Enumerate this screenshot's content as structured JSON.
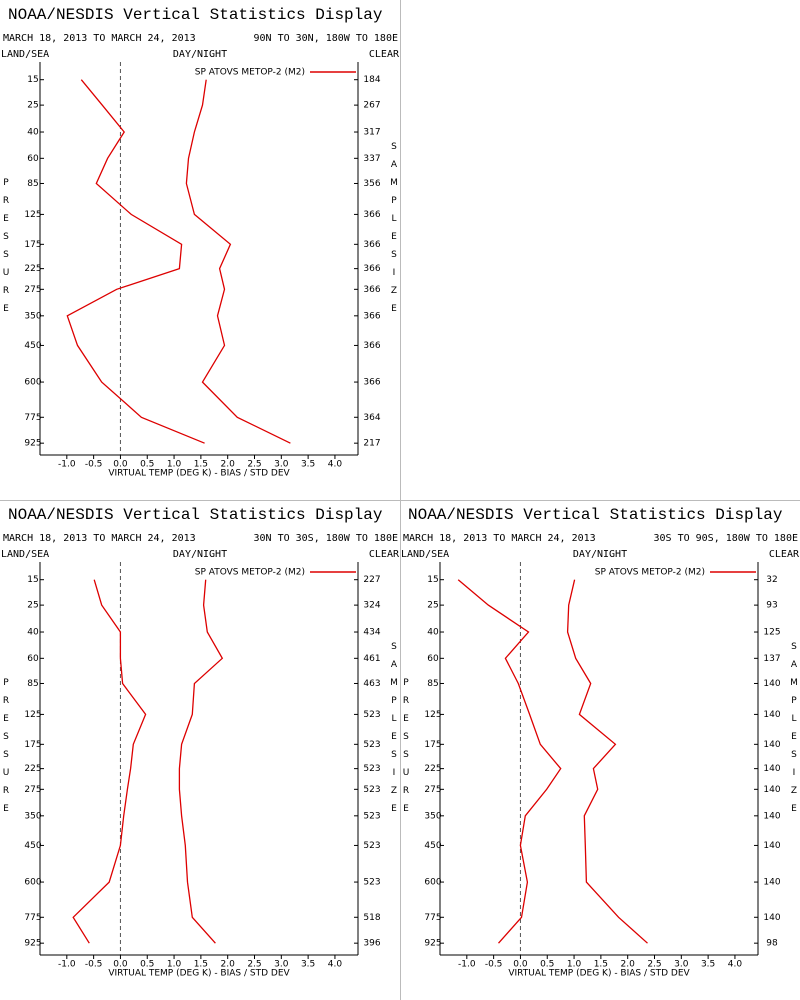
{
  "chart_data": [
    {
      "type": "line",
      "title": "NOAA/NESDIS Vertical Statistics Display",
      "subtitle": "MARCH 18, 2013 TO MARCH 24, 2013",
      "region": "90N TO 30N, 180W TO 180E",
      "left_label": "LAND/SEA",
      "center_label": "DAY/NIGHT",
      "right_label": "CLEAR",
      "y_label": "PRESSURE",
      "y2_label": "SAMPLE SIZE",
      "x_label": "VIRTUAL TEMP (DEG K) - BIAS / STD DEV",
      "y": [
        15,
        25,
        40,
        60,
        85,
        125,
        175,
        225,
        275,
        350,
        450,
        600,
        775,
        925
      ],
      "yticks": [
        15,
        25,
        40,
        60,
        85,
        125,
        175,
        225,
        275,
        350,
        450,
        600,
        775,
        925
      ],
      "ylim": [
        10,
        1000
      ],
      "y_inverted": true,
      "xlim": [
        -1.5,
        4.43
      ],
      "xticks": [
        {
          "value": -1,
          "label": "-1.0"
        },
        -0.5,
        {
          "value": 0,
          "label": "0.0"
        },
        0.5,
        {
          "value": 1,
          "label": "1.0"
        },
        1.5,
        {
          "value": 2,
          "label": "2.0"
        },
        2.5,
        {
          "value": 3,
          "label": "3.0"
        },
        3.5,
        {
          "value": 4,
          "label": "4.0"
        }
      ],
      "sample_size": [
        184,
        267,
        317,
        337,
        356,
        366,
        366,
        366,
        366,
        366,
        366,
        366,
        364,
        217
      ],
      "series": [
        {
          "name": "SP ATOVS METOP-2 (M2)",
          "color": "#dd0000",
          "values": [
            -0.73,
            -0.34,
            0.07,
            -0.24,
            -0.45,
            0.2,
            1.14,
            1.1,
            -0.07,
            -0.99,
            -0.8,
            -0.35,
            0.39,
            1.57
          ],
          "std_dev": [
            1.6,
            1.53,
            1.38,
            1.27,
            1.23,
            1.38,
            2.05,
            1.85,
            1.94,
            1.81,
            1.94,
            1.53,
            2.18,
            3.17
          ]
        }
      ]
    },
    {
      "type": "line",
      "title": "NOAA/NESDIS Vertical Statistics Display",
      "subtitle": "MARCH 18, 2013 TO MARCH 24, 2013",
      "region": "30N TO 30S, 180W TO 180E",
      "left_label": "LAND/SEA",
      "center_label": "DAY/NIGHT",
      "right_label": "CLEAR",
      "y_label": "PRESSURE",
      "y2_label": "SAMPLE SIZE",
      "x_label": "VIRTUAL TEMP (DEG K) - BIAS / STD DEV",
      "y": [
        15,
        25,
        40,
        60,
        85,
        125,
        175,
        225,
        275,
        350,
        450,
        600,
        775,
        925
      ],
      "yticks": [
        15,
        25,
        40,
        60,
        85,
        125,
        175,
        225,
        275,
        350,
        450,
        600,
        775,
        925
      ],
      "ylim": [
        10,
        1000
      ],
      "y_inverted": true,
      "xlim": [
        -1.5,
        4.43
      ],
      "xticks": [
        {
          "value": -1,
          "label": "-1.0"
        },
        -0.5,
        {
          "value": 0,
          "label": "0.0"
        },
        0.5,
        {
          "value": 1,
          "label": "1.0"
        },
        1.5,
        {
          "value": 2,
          "label": "2.0"
        },
        2.5,
        {
          "value": 3,
          "label": "3.0"
        },
        3.5,
        {
          "value": 4,
          "label": "4.0"
        }
      ],
      "sample_size": [
        227,
        324,
        434,
        461,
        463,
        523,
        523,
        523,
        523,
        523,
        523,
        523,
        518,
        396
      ],
      "series": [
        {
          "name": "SP ATOVS METOP-2 (M2)",
          "color": "#dd0000",
          "values": [
            -0.49,
            -0.35,
            0,
            0,
            0.04,
            0.47,
            0.24,
            0.19,
            0.13,
            0.06,
            0,
            -0.21,
            -0.88,
            -0.58
          ],
          "std_dev": [
            1.59,
            1.55,
            1.62,
            1.9,
            1.38,
            1.34,
            1.14,
            1.1,
            1.1,
            1.14,
            1.21,
            1.25,
            1.34,
            1.77
          ]
        }
      ]
    },
    {
      "type": "line",
      "title": "NOAA/NESDIS Vertical Statistics Display",
      "subtitle": "MARCH 18, 2013 TO MARCH 24, 2013",
      "region": "30S TO 90S, 180W TO 180E",
      "left_label": "LAND/SEA",
      "center_label": "DAY/NIGHT",
      "right_label": "CLEAR",
      "y_label": "PRESSURE",
      "y2_label": "SAMPLE SIZE",
      "x_label": "VIRTUAL TEMP (DEG K) - BIAS / STD DEV",
      "y": [
        15,
        25,
        40,
        60,
        85,
        125,
        175,
        225,
        275,
        350,
        450,
        600,
        775,
        925
      ],
      "yticks": [
        15,
        25,
        40,
        60,
        85,
        125,
        175,
        225,
        275,
        350,
        450,
        600,
        775,
        925
      ],
      "ylim": [
        10,
        1000
      ],
      "y_inverted": true,
      "xlim": [
        -1.5,
        4.43
      ],
      "xticks": [
        {
          "value": -1,
          "label": "-1.0"
        },
        -0.5,
        {
          "value": 0,
          "label": "0.0"
        },
        0.5,
        {
          "value": 1,
          "label": "1.0"
        },
        1.5,
        {
          "value": 2,
          "label": "2.0"
        },
        2.5,
        {
          "value": 3,
          "label": "3.0"
        },
        3.5,
        {
          "value": 4,
          "label": "4.0"
        }
      ],
      "sample_size": [
        32,
        93,
        125,
        137,
        140,
        140,
        140,
        140,
        140,
        140,
        140,
        140,
        140,
        98
      ],
      "series": [
        {
          "name": "SP ATOVS METOP-2 (M2)",
          "color": "#dd0000",
          "values": [
            -1.16,
            -0.6,
            0.15,
            -0.28,
            -0.04,
            0.17,
            0.37,
            0.75,
            0.49,
            0.09,
            0,
            0.13,
            0.02,
            -0.41
          ],
          "std_dev": [
            1.01,
            0.9,
            0.88,
            1.03,
            1.31,
            1.1,
            1.77,
            1.36,
            1.44,
            1.19,
            1.21,
            1.23,
            1.83,
            2.37
          ]
        }
      ]
    }
  ]
}
